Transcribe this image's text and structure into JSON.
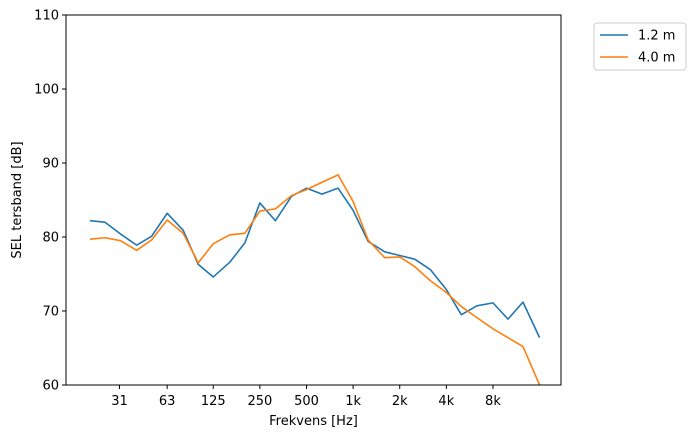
{
  "chart_data": {
    "type": "line",
    "xlabel": "Frekvens [Hz]",
    "ylabel": "SEL tersband [dB]",
    "ylim": [
      60,
      110
    ],
    "yticks": [
      60,
      70,
      80,
      90,
      100,
      110
    ],
    "x_scale": "log",
    "xticks": [
      {
        "value": 31,
        "label": "31"
      },
      {
        "value": 63,
        "label": "63"
      },
      {
        "value": 125,
        "label": "125"
      },
      {
        "value": 250,
        "label": "250"
      },
      {
        "value": 500,
        "label": "500"
      },
      {
        "value": 1000,
        "label": "1k"
      },
      {
        "value": 2000,
        "label": "2k"
      },
      {
        "value": 4000,
        "label": "4k"
      },
      {
        "value": 8000,
        "label": "8k"
      }
    ],
    "x": [
      20,
      25,
      31.5,
      40,
      50,
      63,
      80,
      100,
      125,
      160,
      200,
      250,
      315,
      400,
      500,
      630,
      800,
      1000,
      1250,
      1600,
      2000,
      2500,
      3150,
      4000,
      5000,
      6300,
      8000,
      10000,
      12500,
      16000
    ],
    "grid": false,
    "legend_position": "upper right, outside plot",
    "series": [
      {
        "name": "1.2 m",
        "color": "#1f77b4",
        "values": [
          82.2,
          82.0,
          80.4,
          78.9,
          80.1,
          83.2,
          80.9,
          76.3,
          74.6,
          76.6,
          79.2,
          84.6,
          82.2,
          85.5,
          86.6,
          85.8,
          86.6,
          83.6,
          79.4,
          78.0,
          77.5,
          77.0,
          75.6,
          72.9,
          69.5,
          70.7,
          71.1,
          68.9,
          71.2,
          66.4
        ]
      },
      {
        "name": "4.0 m",
        "color": "#ff7f0e",
        "values": [
          79.7,
          79.9,
          79.5,
          78.2,
          79.6,
          82.3,
          80.5,
          76.5,
          79.1,
          80.3,
          80.5,
          83.5,
          83.8,
          85.6,
          86.4,
          87.4,
          88.4,
          84.8,
          79.6,
          77.2,
          77.3,
          76.0,
          74.1,
          72.5,
          70.6,
          69.1,
          67.6,
          66.4,
          65.2,
          60.0
        ]
      }
    ]
  }
}
